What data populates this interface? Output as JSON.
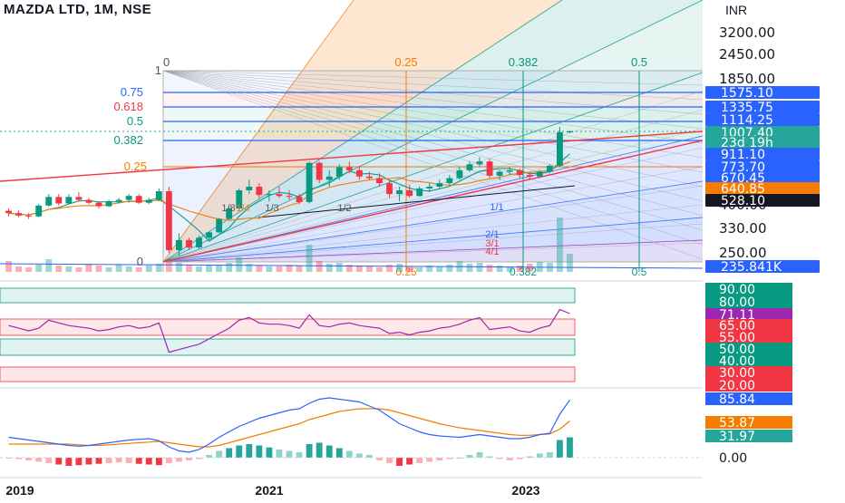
{
  "header": {
    "title": "MAZDA LTD, 1M, NSE",
    "currency": "INR"
  },
  "price_axis": {
    "ticks": [
      "3200.00",
      "2450.00",
      "1850.00",
      "400.00",
      "330.00",
      "250.00"
    ]
  },
  "price_badges": [
    {
      "text": "1575.10",
      "color": "#2962ff"
    },
    {
      "text": "1335.75",
      "color": "#2962ff"
    },
    {
      "text": "1114.25",
      "color": "#2962ff"
    },
    {
      "text": "1007.40",
      "color": "#26a69a"
    },
    {
      "text": "23d 19h",
      "color": "#26a69a"
    },
    {
      "text": "911.10",
      "color": "#2962ff"
    },
    {
      "text": "773.70",
      "color": "#2962ff"
    },
    {
      "text": "670.45",
      "color": "#2962ff"
    },
    {
      "text": "640.85",
      "color": "#f57c00"
    },
    {
      "text": "528.10",
      "color": "#131722"
    },
    {
      "text": "235.841K",
      "color": "#2962ff"
    }
  ],
  "fib_levels": [
    {
      "label": "1",
      "color": "#555555"
    },
    {
      "label": "0.75",
      "color": "#2962ff"
    },
    {
      "label": "0.618",
      "color": "#f23645"
    },
    {
      "label": "0.5",
      "color": "#089981"
    },
    {
      "label": "0.382",
      "color": "#089981"
    },
    {
      "label": "0.25",
      "color": "#f57c00"
    },
    {
      "label": "0",
      "color": "#555555"
    }
  ],
  "fib_time_labels": [
    {
      "label": "0",
      "color": "#555555"
    },
    {
      "label": "0.25",
      "color": "#f57c00"
    },
    {
      "label": "0.382",
      "color": "#089981"
    },
    {
      "label": "0.5",
      "color": "#089981"
    }
  ],
  "gann_labels": [
    "1/2",
    "2/1",
    "3/1",
    "4/1",
    "8/1",
    "1/1",
    "1/3",
    "1/4",
    "1/8"
  ],
  "rsi_axis": {
    "badges": [
      {
        "text": "90.00",
        "color": "#089981"
      },
      {
        "text": "80.00",
        "color": "#089981"
      },
      {
        "text": "71.11",
        "color": "#9c27b0"
      },
      {
        "text": "65.00",
        "color": "#f23645"
      },
      {
        "text": "55.00",
        "color": "#f23645"
      },
      {
        "text": "50.00",
        "color": "#089981"
      },
      {
        "text": "40.00",
        "color": "#089981"
      },
      {
        "text": "30.00",
        "color": "#f23645"
      },
      {
        "text": "20.00",
        "color": "#f23645"
      }
    ]
  },
  "macd_axis": {
    "badges": [
      {
        "text": "85.84",
        "color": "#2962ff"
      },
      {
        "text": "53.87",
        "color": "#f57c00"
      },
      {
        "text": "31.97",
        "color": "#26a69a"
      }
    ],
    "zero": "0.00"
  },
  "time_axis": {
    "labels": [
      "2019",
      "2021",
      "2023"
    ]
  },
  "chart_data": {
    "type": "candlestick",
    "title": "MAZDA LTD, 1M, NSE",
    "currency": "INR",
    "x_labels": [
      "2019",
      "2021",
      "2023"
    ],
    "price_ticks": [
      3200,
      2450,
      1850,
      400,
      330,
      250
    ],
    "last_price": 1007.4,
    "candles": [
      [
        455,
        470,
        420,
        440
      ],
      [
        440,
        460,
        415,
        425
      ],
      [
        425,
        440,
        405,
        420
      ],
      [
        420,
        500,
        415,
        490
      ],
      [
        490,
        560,
        480,
        545
      ],
      [
        545,
        560,
        490,
        505
      ],
      [
        505,
        560,
        500,
        545
      ],
      [
        545,
        570,
        520,
        530
      ],
      [
        530,
        540,
        500,
        510
      ],
      [
        510,
        520,
        470,
        485
      ],
      [
        485,
        530,
        480,
        520
      ],
      [
        520,
        540,
        505,
        530
      ],
      [
        530,
        560,
        510,
        550
      ],
      [
        550,
        560,
        500,
        510
      ],
      [
        510,
        540,
        500,
        530
      ],
      [
        530,
        590,
        520,
        575
      ],
      [
        575,
        600,
        250,
        260
      ],
      [
        260,
        330,
        240,
        300
      ],
      [
        300,
        310,
        260,
        270
      ],
      [
        270,
        320,
        265,
        310
      ],
      [
        310,
        340,
        300,
        335
      ],
      [
        335,
        410,
        330,
        405
      ],
      [
        405,
        480,
        400,
        470
      ],
      [
        470,
        590,
        460,
        580
      ],
      [
        580,
        640,
        560,
        600
      ],
      [
        600,
        620,
        540,
        555
      ],
      [
        555,
        580,
        520,
        560
      ],
      [
        560,
        600,
        540,
        550
      ],
      [
        550,
        580,
        530,
        545
      ],
      [
        545,
        560,
        500,
        515
      ],
      [
        515,
        760,
        505,
        750
      ],
      [
        750,
        760,
        620,
        640
      ],
      [
        640,
        700,
        600,
        660
      ],
      [
        660,
        740,
        640,
        720
      ],
      [
        720,
        760,
        680,
        700
      ],
      [
        700,
        730,
        640,
        660
      ],
      [
        660,
        690,
        640,
        650
      ],
      [
        650,
        680,
        600,
        620
      ],
      [
        620,
        640,
        540,
        560
      ],
      [
        560,
        600,
        520,
        580
      ],
      [
        580,
        610,
        540,
        550
      ],
      [
        550,
        600,
        545,
        590
      ],
      [
        590,
        620,
        570,
        600
      ],
      [
        600,
        640,
        590,
        620
      ],
      [
        620,
        670,
        610,
        650
      ],
      [
        650,
        720,
        640,
        700
      ],
      [
        700,
        760,
        690,
        740
      ],
      [
        740,
        790,
        720,
        760
      ],
      [
        760,
        780,
        650,
        665
      ],
      [
        665,
        700,
        640,
        690
      ],
      [
        690,
        720,
        670,
        700
      ],
      [
        700,
        710,
        650,
        670
      ],
      [
        670,
        690,
        640,
        660
      ],
      [
        660,
        700,
        650,
        690
      ],
      [
        690,
        740,
        680,
        730
      ],
      [
        730,
        1060,
        720,
        1000
      ],
      [
        1000,
        1020,
        990,
        1007.4
      ]
    ]
  }
}
